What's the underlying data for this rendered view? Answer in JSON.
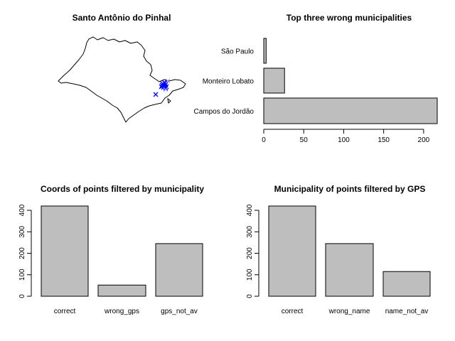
{
  "colors": {
    "bar_fill": "#bebebe",
    "bar_stroke": "#000000",
    "point_dense": "#0000ff",
    "point_light": "#9999ff",
    "map_stroke": "#000000"
  },
  "chart_data": [
    {
      "type": "map",
      "title": "Santo Antônio do Pinhal",
      "region": "São Paulo state outline",
      "points": [
        {
          "label": "cluster",
          "marker": "x",
          "count_hint": "many"
        },
        {
          "label": "outlier",
          "marker": "x"
        }
      ]
    },
    {
      "type": "bar",
      "orientation": "horizontal",
      "title": "Top three wrong municipalities",
      "categories": [
        "São Paulo",
        "Monteiro Lobato",
        "Campos do Jordão"
      ],
      "values": [
        3,
        26,
        217
      ],
      "xlim": [
        0,
        217
      ],
      "xticks": [
        0,
        50,
        100,
        150,
        200
      ]
    },
    {
      "type": "bar",
      "orientation": "vertical",
      "title": "Coords of points filtered by municipality",
      "categories": [
        "correct",
        "wrong_gps",
        "gps_not_av"
      ],
      "values": [
        420,
        52,
        245
      ],
      "ylim": [
        0,
        420
      ],
      "yticks": [
        0,
        100,
        200,
        300,
        400
      ]
    },
    {
      "type": "bar",
      "orientation": "vertical",
      "title": "Municipality of points filtered by GPS",
      "categories": [
        "correct",
        "wrong_name",
        "name_not_av"
      ],
      "values": [
        420,
        245,
        115
      ],
      "ylim": [
        0,
        420
      ],
      "yticks": [
        0,
        100,
        200,
        300,
        400
      ]
    }
  ]
}
